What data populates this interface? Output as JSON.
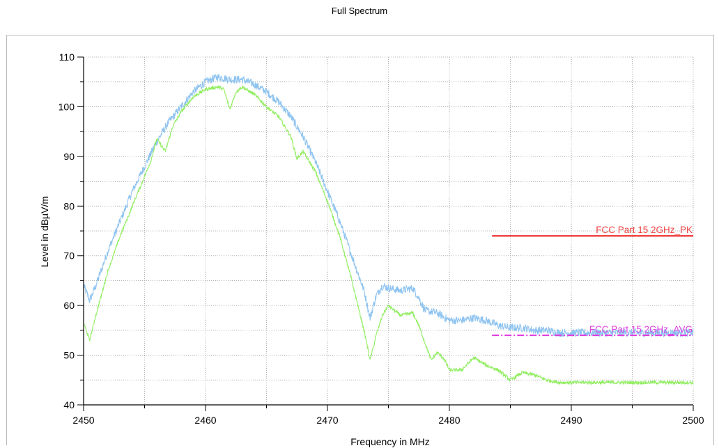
{
  "title": "Full Spectrum",
  "chart_data": {
    "type": "line",
    "title": "Full Spectrum",
    "xlabel": "Frequency in MHz",
    "ylabel": "Level in dBµV/m",
    "xlim": [
      2450,
      2500
    ],
    "ylim": [
      40,
      110
    ],
    "x_major_ticks": [
      2450,
      2460,
      2470,
      2480,
      2490,
      2500
    ],
    "y_major_ticks": [
      40,
      50,
      60,
      70,
      80,
      90,
      100,
      110
    ],
    "grid": true,
    "series": [
      {
        "name": "",
        "color": "#8ec3f0",
        "noise": 0.8,
        "points": [
          [
            2450,
            64
          ],
          [
            2450.5,
            61
          ],
          [
            2451,
            64
          ],
          [
            2452,
            71
          ],
          [
            2453,
            77
          ],
          [
            2454,
            83
          ],
          [
            2455,
            88
          ],
          [
            2456,
            93
          ],
          [
            2457,
            97
          ],
          [
            2458,
            100
          ],
          [
            2459,
            103
          ],
          [
            2460,
            105
          ],
          [
            2461,
            106
          ],
          [
            2462,
            105.5
          ],
          [
            2463,
            105.5
          ],
          [
            2464,
            104.5
          ],
          [
            2465,
            103
          ],
          [
            2466,
            101
          ],
          [
            2467,
            98
          ],
          [
            2468,
            94
          ],
          [
            2469,
            89
          ],
          [
            2470,
            83
          ],
          [
            2471,
            77
          ],
          [
            2472,
            70
          ],
          [
            2473,
            63
          ],
          [
            2473.5,
            57.5
          ],
          [
            2474,
            62
          ],
          [
            2474.5,
            64
          ],
          [
            2475,
            63.5
          ],
          [
            2476,
            63
          ],
          [
            2477,
            63.5
          ],
          [
            2477.5,
            61.5
          ],
          [
            2478,
            59
          ],
          [
            2479,
            58.5
          ],
          [
            2480,
            57
          ],
          [
            2481,
            57
          ],
          [
            2482,
            57.5
          ],
          [
            2483,
            57
          ],
          [
            2484,
            56
          ],
          [
            2485,
            55.5
          ],
          [
            2486,
            55.5
          ],
          [
            2487,
            55
          ],
          [
            2488,
            55
          ],
          [
            2489,
            54.5
          ],
          [
            2490,
            54.5
          ],
          [
            2492,
            54.5
          ],
          [
            2494,
            54.5
          ],
          [
            2496,
            54.5
          ],
          [
            2498,
            54.5
          ],
          [
            2500,
            54.5
          ]
        ]
      },
      {
        "name": "",
        "color": "#90ee60",
        "noise": 0.35,
        "points": [
          [
            2450,
            56.5
          ],
          [
            2450.5,
            53
          ],
          [
            2451,
            58
          ],
          [
            2452,
            67
          ],
          [
            2453,
            74
          ],
          [
            2454,
            80
          ],
          [
            2455,
            86
          ],
          [
            2455.5,
            89
          ],
          [
            2456,
            93.5
          ],
          [
            2456.7,
            91
          ],
          [
            2457.3,
            96
          ],
          [
            2458,
            99
          ],
          [
            2459,
            102
          ],
          [
            2460,
            103.5
          ],
          [
            2461,
            104
          ],
          [
            2461.5,
            103.5
          ],
          [
            2462,
            99.5
          ],
          [
            2462.5,
            103
          ],
          [
            2463,
            104
          ],
          [
            2464,
            102.5
          ],
          [
            2465,
            100
          ],
          [
            2466,
            98
          ],
          [
            2467,
            94
          ],
          [
            2467.5,
            89.5
          ],
          [
            2468,
            91
          ],
          [
            2469,
            87
          ],
          [
            2470,
            81
          ],
          [
            2471,
            74
          ],
          [
            2472,
            65
          ],
          [
            2473,
            55
          ],
          [
            2473.5,
            49
          ],
          [
            2474,
            54
          ],
          [
            2474.5,
            58
          ],
          [
            2475,
            60
          ],
          [
            2476,
            58
          ],
          [
            2477,
            58.5
          ],
          [
            2477.5,
            56
          ],
          [
            2478,
            52.5
          ],
          [
            2478.5,
            49
          ],
          [
            2479,
            50.5
          ],
          [
            2479.5,
            49.5
          ],
          [
            2480,
            47
          ],
          [
            2481,
            47
          ],
          [
            2482,
            49.5
          ],
          [
            2483,
            48
          ],
          [
            2484,
            47
          ],
          [
            2485,
            45
          ],
          [
            2486,
            46.5
          ],
          [
            2487,
            46
          ],
          [
            2488,
            45
          ],
          [
            2489,
            44.5
          ],
          [
            2490,
            44.5
          ],
          [
            2492,
            44.5
          ],
          [
            2495,
            44.5
          ],
          [
            2500,
            44.5
          ]
        ]
      }
    ],
    "limit_lines": [
      {
        "name": "FCC Part 15 2GHz_PK",
        "x": [
          2483.5,
          2500
        ],
        "y": 74,
        "color": "#f04040",
        "style": "solid"
      },
      {
        "name": "FCC Part 15 2GHz_AVG",
        "x": [
          2483.5,
          2500
        ],
        "y": 54,
        "color": "#e040e0",
        "style": "dashdot"
      }
    ]
  }
}
